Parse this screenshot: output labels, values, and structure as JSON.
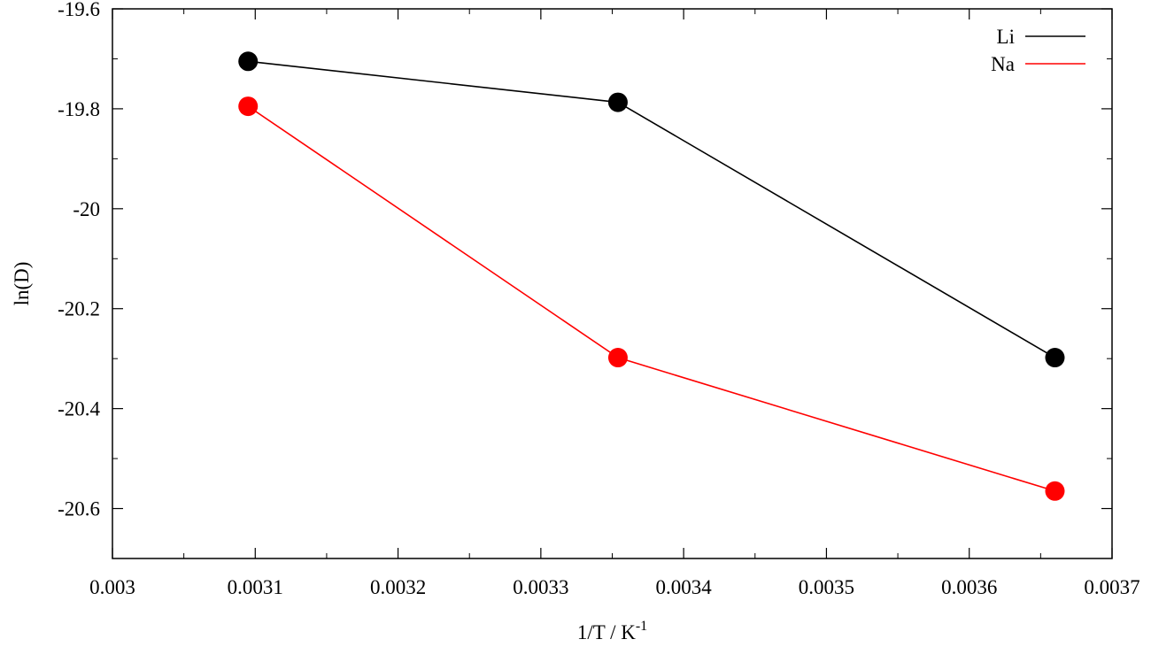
{
  "chart_data": {
    "type": "line",
    "title": "",
    "xlabel": "1/T / K",
    "xlabel_superscript": "-1",
    "ylabel": "ln(D)",
    "xlim": [
      0.003,
      0.0037
    ],
    "ylim": [
      -20.7,
      -19.6
    ],
    "x_ticks": [
      0.003,
      0.0031,
      0.0032,
      0.0033,
      0.0034,
      0.0035,
      0.0036,
      0.0037
    ],
    "x_tick_labels": [
      "0.003",
      "0.0031",
      "0.0032",
      "0.0033",
      "0.0034",
      "0.0035",
      "0.0036",
      "0.0037"
    ],
    "y_ticks": [
      -19.6,
      -19.8,
      -20.0,
      -20.2,
      -20.4,
      -20.6
    ],
    "y_tick_labels": [
      "-19.6",
      "-19.8",
      "-20",
      "-20.2",
      "-20.4",
      "-20.6"
    ],
    "grid": false,
    "legend": "top-right",
    "series": [
      {
        "name": "Li",
        "color": "#000000",
        "x": [
          0.003095,
          0.003354,
          0.00366
        ],
        "y": [
          -19.705,
          -19.787,
          -20.298
        ]
      },
      {
        "name": "Na",
        "color": "#ff0000",
        "x": [
          0.003095,
          0.003354,
          0.00366
        ],
        "y": [
          -19.795,
          -20.298,
          -20.565
        ]
      }
    ]
  }
}
